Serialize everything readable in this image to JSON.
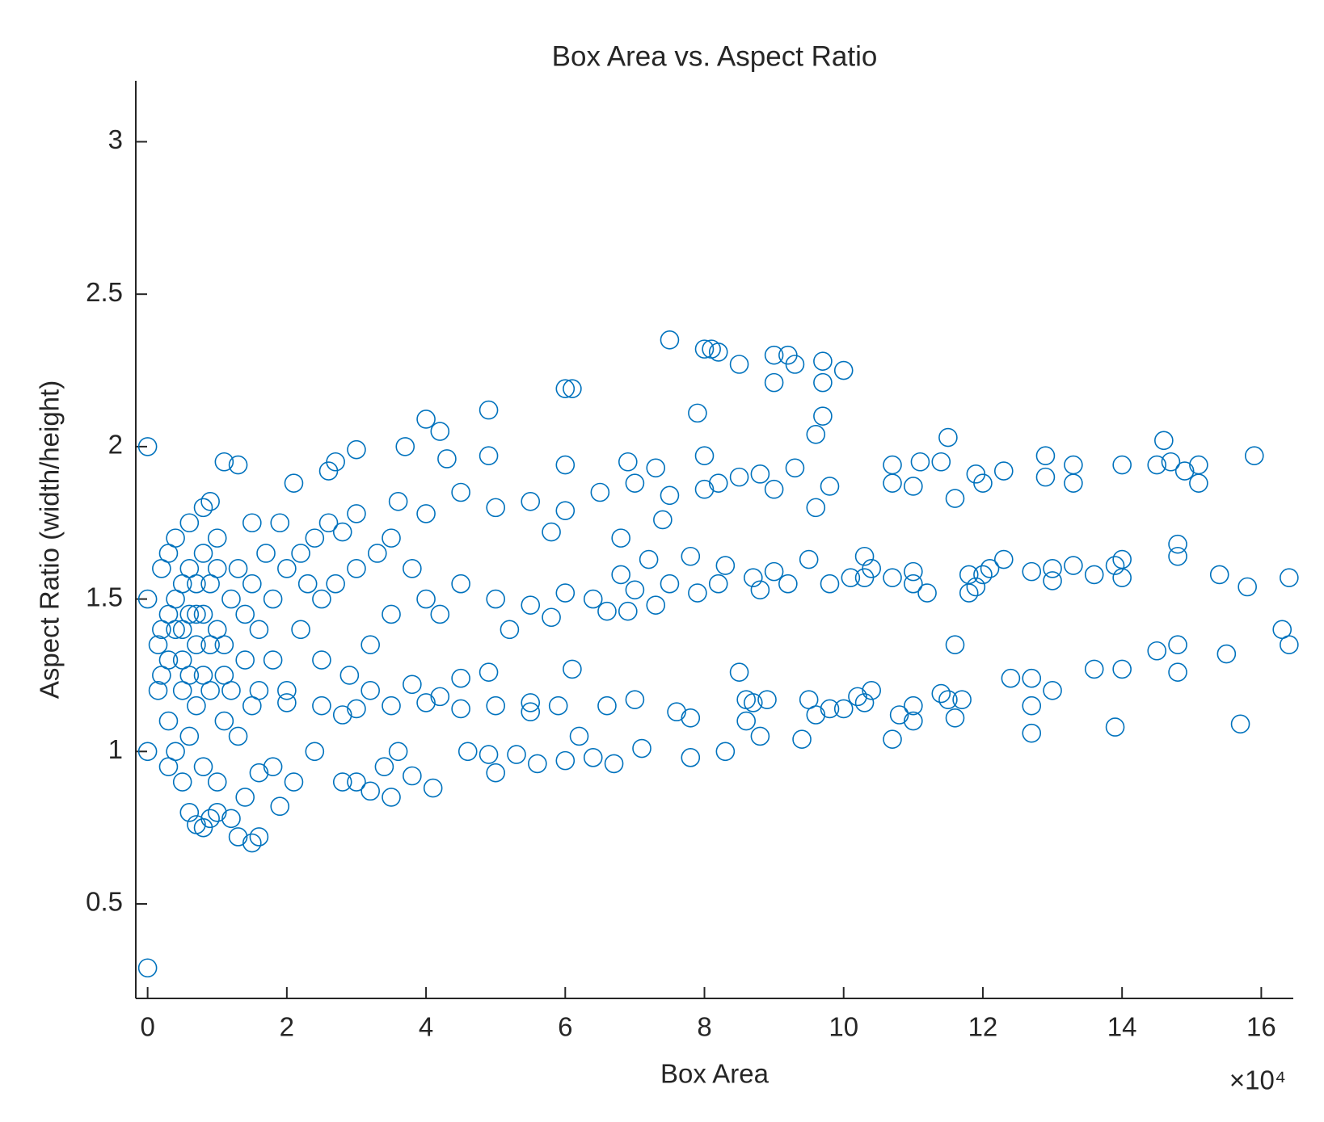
{
  "chart_data": {
    "type": "scatter",
    "title": "Box Area vs. Aspect Ratio",
    "x_label": "Box Area",
    "y_label": "Aspect Ratio (width/height)",
    "x_multiplier": "×10⁴",
    "color": "#0072BD",
    "grid": false,
    "xlim": [
      -0.17,
      16.46
    ],
    "ylim": [
      0.19,
      3.2
    ],
    "xticks": [
      0,
      2,
      4,
      6,
      8,
      10,
      12,
      14,
      16
    ],
    "yticks": [
      0.5,
      1,
      1.5,
      2,
      2.5,
      3
    ],
    "x": [
      0,
      0,
      0,
      0,
      7.5,
      8.0,
      8.1,
      8.2,
      8.5,
      9.0,
      9.2,
      9.3,
      9.7,
      10.0,
      9.0,
      9.7,
      6.0,
      6.1,
      4.0,
      4.2,
      4.9,
      7.9,
      9.7,
      9.6,
      3.7,
      3.0,
      4.3,
      4.9,
      10.7,
      10.7,
      11.0,
      11.1,
      11.4,
      11.5,
      11.6,
      11.9,
      12.0,
      12.3,
      12.9,
      12.9,
      13.3,
      13.3,
      14.0,
      14.5,
      14.6,
      14.7,
      14.9,
      15.1,
      15.1,
      15.9,
      10.3,
      10.4,
      10.7,
      10.3,
      11.0,
      11.0,
      11.2,
      11.8,
      11.8,
      11.9,
      12.0,
      12.1,
      12.3,
      12.7,
      13.0,
      13.0,
      13.3,
      13.6,
      13.9,
      14.0,
      14.0,
      14.8,
      14.8,
      15.4,
      15.8,
      16.4,
      9.5,
      9.2,
      9.0,
      8.7,
      8.8,
      9.8,
      10.1,
      16.3,
      16.4,
      15.5,
      14.8,
      14.5,
      14.8,
      14.0,
      13.6,
      13.0,
      12.7,
      12.4,
      12.7,
      12.7,
      13.9,
      15.7,
      11.6,
      11.4,
      11.5,
      11.7,
      11.6,
      11.0,
      11.0,
      10.8,
      10.7,
      10.4,
      10.2,
      10.3,
      10.0,
      9.4,
      9.5,
      9.6,
      9.8,
      8.5,
      8.6,
      8.7,
      8.9,
      8.6,
      8.8,
      8.3,
      7.8,
      7.8,
      7.6,
      7.1,
      6.7,
      6.4,
      6.0,
      5.6,
      5.3,
      5.0,
      4.9,
      4.6,
      6.2,
      6.6,
      7.0,
      5.9,
      6.1,
      4.9,
      4.5,
      5.5,
      5.0,
      5.5,
      6.0,
      6.5,
      7.0,
      7.5,
      8.0,
      8.2,
      8.5,
      8.8,
      9.0,
      9.3,
      9.6,
      9.8,
      6.9,
      6.0,
      7.3,
      8.0,
      4.5,
      5.8,
      6.8,
      7.4,
      4.0,
      3.6,
      4.0,
      4.5,
      5.0,
      5.5,
      6.0,
      6.4,
      6.8,
      7.0,
      7.2,
      7.5,
      7.9,
      8.2,
      8.3,
      7.8,
      6.6,
      5.2,
      4.2,
      3.8,
      5.8,
      6.9,
      7.3,
      2.0,
      2.5,
      3.0,
      3.5,
      4.0,
      4.5,
      5.0,
      5.5,
      3.2,
      3.8,
      4.2,
      2.8,
      0.3,
      0.4,
      0.5,
      0.6,
      0.7,
      0.8,
      0.9,
      1.0,
      1.1,
      1.2,
      0.3,
      0.5,
      0.7,
      0.9,
      1.1,
      0.4,
      0.6,
      0.8,
      1.0,
      1.3,
      1.5,
      1.6,
      1.8,
      2.0,
      2.2,
      2.4,
      2.6,
      2.8,
      3.0,
      1.8,
      2.0,
      1.5,
      1.3,
      0.2,
      0.2,
      0.3,
      0.5,
      0.6,
      0.7,
      0.8,
      0.9,
      1.0,
      1.2,
      1.3,
      1.5,
      1.6,
      1.4,
      1.0,
      0.8,
      1.1,
      1.3,
      0.9,
      1.5,
      2.1,
      2.6,
      2.7,
      2.5,
      2.7,
      3.0,
      3.3,
      3.5,
      3.0,
      3.2,
      3.4,
      3.5,
      3.6,
      3.8,
      4.1,
      2.8,
      2.4,
      2.1,
      1.8,
      1.9,
      1.6,
      2.2,
      2.5,
      2.9,
      3.2,
      3.5,
      1.7,
      0.2,
      0.3,
      0.15,
      0.15,
      0.4,
      0.6,
      0.5,
      0.6,
      0.7,
      0.8,
      0.9,
      1.0,
      1.1,
      1.2,
      1.4,
      0.5,
      0.4,
      0.6,
      0.7,
      0.3,
      0.8,
      1.4,
      1.6,
      1.9,
      2.3
    ],
    "values": [
      2.0,
      1.5,
      1.0,
      0.29,
      2.35,
      2.32,
      2.32,
      2.31,
      2.27,
      2.3,
      2.3,
      2.27,
      2.28,
      2.25,
      2.21,
      2.21,
      2.19,
      2.19,
      2.09,
      2.05,
      2.12,
      2.11,
      2.1,
      2.04,
      2.0,
      1.99,
      1.96,
      1.97,
      1.94,
      1.88,
      1.87,
      1.95,
      1.95,
      2.03,
      1.83,
      1.91,
      1.88,
      1.92,
      1.97,
      1.9,
      1.94,
      1.88,
      1.94,
      1.94,
      2.02,
      1.95,
      1.92,
      1.94,
      1.88,
      1.97,
      1.64,
      1.6,
      1.57,
      1.57,
      1.59,
      1.55,
      1.52,
      1.58,
      1.52,
      1.54,
      1.58,
      1.6,
      1.63,
      1.59,
      1.6,
      1.56,
      1.61,
      1.58,
      1.61,
      1.57,
      1.63,
      1.68,
      1.64,
      1.58,
      1.54,
      1.57,
      1.63,
      1.55,
      1.59,
      1.57,
      1.53,
      1.55,
      1.57,
      1.4,
      1.35,
      1.32,
      1.35,
      1.33,
      1.26,
      1.27,
      1.27,
      1.2,
      1.24,
      1.24,
      1.15,
      1.06,
      1.08,
      1.09,
      1.35,
      1.19,
      1.17,
      1.17,
      1.11,
      1.15,
      1.1,
      1.12,
      1.04,
      1.2,
      1.18,
      1.16,
      1.14,
      1.04,
      1.17,
      1.12,
      1.14,
      1.26,
      1.17,
      1.16,
      1.17,
      1.1,
      1.05,
      1.0,
      0.98,
      1.11,
      1.13,
      1.01,
      0.96,
      0.98,
      0.97,
      0.96,
      0.99,
      0.93,
      0.99,
      1.0,
      1.05,
      1.15,
      1.17,
      1.15,
      1.27,
      1.26,
      1.24,
      1.13,
      1.8,
      1.82,
      1.79,
      1.85,
      1.88,
      1.84,
      1.86,
      1.88,
      1.9,
      1.91,
      1.86,
      1.93,
      1.8,
      1.87,
      1.95,
      1.94,
      1.93,
      1.97,
      1.85,
      1.72,
      1.7,
      1.76,
      1.78,
      1.82,
      1.5,
      1.55,
      1.5,
      1.48,
      1.52,
      1.5,
      1.58,
      1.53,
      1.63,
      1.55,
      1.52,
      1.55,
      1.61,
      1.64,
      1.46,
      1.4,
      1.45,
      1.6,
      1.44,
      1.46,
      1.48,
      1.16,
      1.15,
      1.14,
      1.15,
      1.16,
      1.14,
      1.15,
      1.16,
      1.2,
      1.22,
      1.18,
      1.12,
      1.3,
      1.5,
      1.4,
      1.6,
      1.35,
      1.45,
      1.55,
      1.4,
      1.25,
      1.5,
      1.1,
      1.2,
      1.15,
      1.2,
      1.1,
      1.7,
      1.75,
      1.8,
      1.7,
      1.6,
      1.55,
      1.4,
      1.5,
      1.6,
      1.65,
      1.7,
      1.75,
      1.72,
      1.78,
      1.3,
      1.2,
      1.15,
      1.05,
      1.25,
      1.4,
      0.95,
      0.9,
      0.8,
      0.76,
      0.75,
      0.78,
      0.8,
      0.78,
      0.72,
      0.7,
      0.72,
      0.85,
      0.9,
      0.95,
      1.95,
      1.94,
      1.82,
      1.75,
      1.88,
      1.92,
      1.95,
      1.5,
      1.55,
      1.6,
      1.65,
      1.7,
      0.9,
      0.87,
      0.95,
      0.85,
      1.0,
      0.92,
      0.88,
      0.9,
      1.0,
      0.9,
      0.95,
      0.82,
      0.93,
      1.4,
      1.3,
      1.25,
      1.35,
      1.45,
      1.65,
      1.6,
      1.65,
      1.2,
      1.35,
      1.0,
      1.05,
      1.3,
      1.45,
      1.55,
      1.25,
      1.35,
      1.6,
      1.35,
      1.2,
      1.3,
      1.55,
      1.4,
      1.25,
      1.45,
      1.45,
      1.65,
      1.45,
      1.2,
      1.75,
      1.55
    ]
  }
}
